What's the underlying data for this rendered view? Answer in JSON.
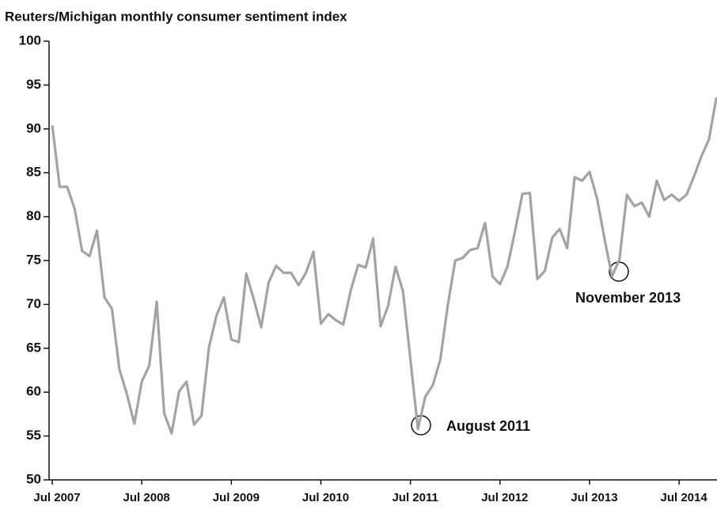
{
  "chart_data": {
    "type": "line",
    "title": "Reuters/Michigan monthly consumer sentiment index",
    "categories": [
      "Jul 2007",
      null,
      null,
      null,
      null,
      null,
      null,
      null,
      null,
      null,
      null,
      null,
      "Jul 2008",
      null,
      null,
      null,
      null,
      null,
      null,
      null,
      null,
      null,
      null,
      null,
      "Jul 2009",
      null,
      null,
      null,
      null,
      null,
      null,
      null,
      null,
      null,
      null,
      null,
      "Jul 2010",
      null,
      null,
      null,
      null,
      null,
      null,
      null,
      null,
      null,
      null,
      null,
      "Jul 2011",
      null,
      null,
      null,
      null,
      null,
      null,
      null,
      null,
      null,
      null,
      null,
      "Jul 2012",
      null,
      null,
      null,
      null,
      null,
      null,
      null,
      null,
      null,
      null,
      null,
      "Jul 2013",
      null,
      null,
      null,
      null,
      null,
      null,
      null,
      null,
      null,
      null,
      null,
      "Jul 2014",
      null,
      null,
      null,
      null,
      null
    ],
    "series": [
      {
        "color": "#a3a3a3",
        "values": [
          90.4,
          83.4,
          83.4,
          80.9,
          76.1,
          75.5,
          78.4,
          70.8,
          69.5,
          62.6,
          59.8,
          56.4,
          61.2,
          63.0,
          70.3,
          57.6,
          55.3,
          60.1,
          61.2,
          56.3,
          57.3,
          65.1,
          68.7,
          70.8,
          66.0,
          65.7,
          73.5,
          70.6,
          67.4,
          72.5,
          74.4,
          73.6,
          73.6,
          72.2,
          73.6,
          76.0,
          67.8,
          68.9,
          68.2,
          67.7,
          71.6,
          74.5,
          74.2,
          77.5,
          67.5,
          69.8,
          74.3,
          71.5,
          63.7,
          55.8,
          59.5,
          60.8,
          63.7,
          69.9,
          75.0,
          75.3,
          76.2,
          76.4,
          79.3,
          73.2,
          72.3,
          74.3,
          78.3,
          82.6,
          82.7,
          72.9,
          73.8,
          77.6,
          78.6,
          76.4,
          84.5,
          84.1,
          85.1,
          82.1,
          77.5,
          73.2,
          75.1,
          82.5,
          81.2,
          81.6,
          80.0,
          84.1,
          81.9,
          82.5,
          81.8,
          82.5,
          84.6,
          86.9,
          88.8,
          93.6
        ]
      }
    ],
    "ylim": [
      50,
      100
    ],
    "yticks": [
      50,
      55,
      60,
      65,
      70,
      75,
      80,
      85,
      90,
      95,
      100
    ],
    "annotations": [
      "August 2011",
      "November 2013"
    ]
  }
}
